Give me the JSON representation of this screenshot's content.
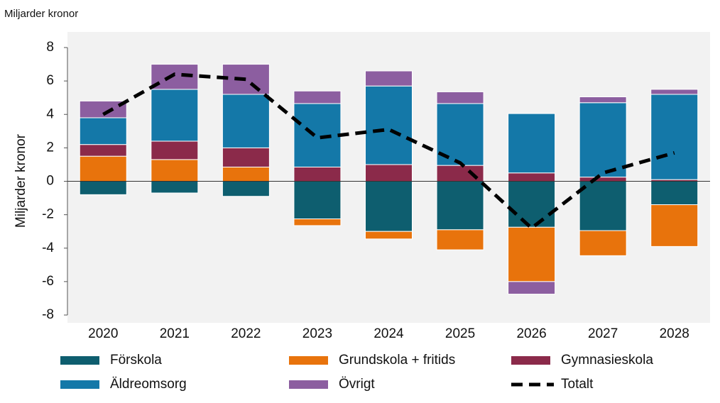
{
  "chart_data": {
    "type": "bar",
    "stacked": true,
    "unit_label": "Miljarder kronor",
    "ylabel": "Miljarder kronor",
    "categories": [
      "2020",
      "2021",
      "2022",
      "2023",
      "2024",
      "2025",
      "2026",
      "2027",
      "2028"
    ],
    "series": [
      {
        "name": "Förskola",
        "color": "#0e5e6f",
        "values": [
          -0.8,
          -0.7,
          -0.9,
          -2.25,
          -3.0,
          -2.9,
          -2.75,
          -2.95,
          -1.4
        ]
      },
      {
        "name": "Grundskola + fritids",
        "color": "#e8730c",
        "values": [
          1.5,
          1.3,
          0.85,
          -0.4,
          -0.45,
          -1.2,
          -3.25,
          -1.5,
          -2.5
        ]
      },
      {
        "name": "Gymnasieskola",
        "color": "#8b2a4a",
        "values": [
          0.7,
          1.1,
          1.15,
          0.85,
          1.0,
          0.95,
          0.5,
          0.25,
          0.1
        ]
      },
      {
        "name": "Äldreomsorg",
        "color": "#1478a8",
        "values": [
          1.6,
          3.1,
          3.2,
          3.8,
          4.7,
          3.7,
          3.55,
          4.45,
          5.1
        ]
      },
      {
        "name": "Övrigt",
        "color": "#8c5ea0",
        "values": [
          1.0,
          1.5,
          1.8,
          0.75,
          0.9,
          0.7,
          -0.75,
          0.35,
          0.3
        ]
      }
    ],
    "line_series": {
      "name": "Totalt",
      "color": "#000000",
      "dashed": true,
      "values": [
        4.0,
        6.4,
        6.1,
        2.6,
        3.1,
        1.1,
        -2.8,
        0.5,
        1.7
      ]
    },
    "ylim": [
      -8,
      8
    ],
    "yticks": [
      -8,
      -6,
      -4,
      -2,
      0,
      2,
      4,
      6,
      8
    ]
  }
}
